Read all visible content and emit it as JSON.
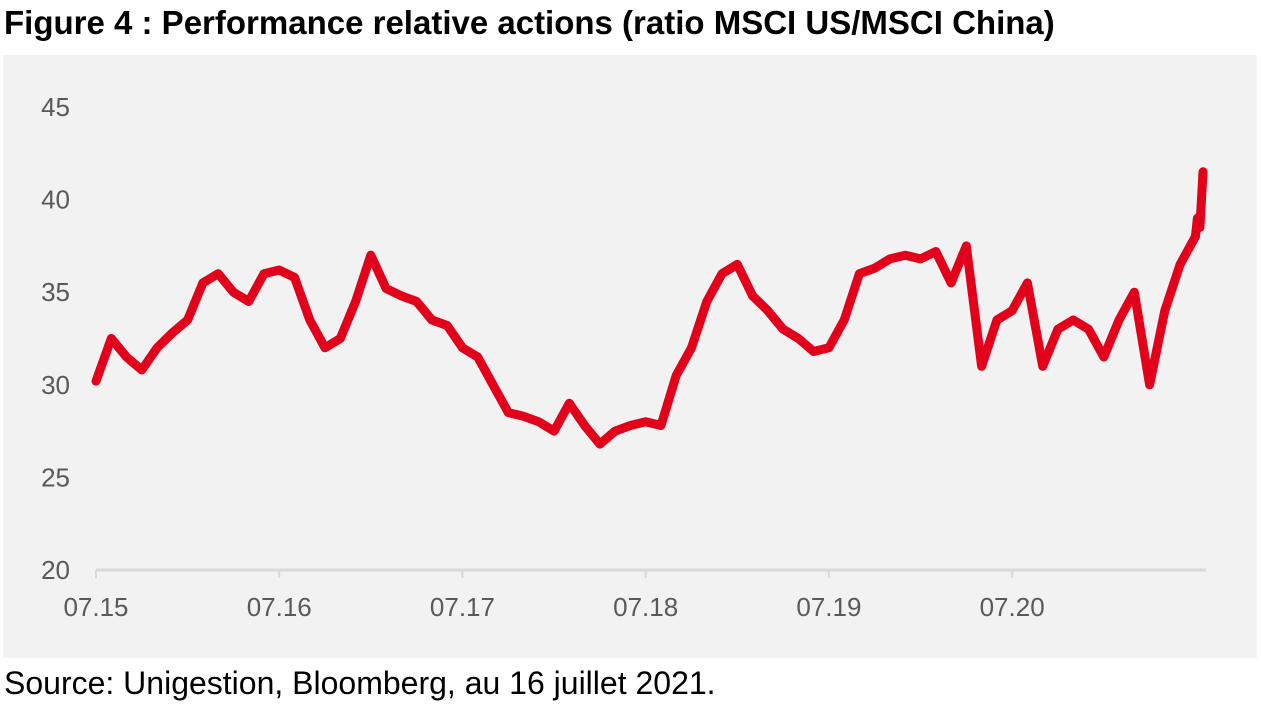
{
  "title": "Figure 4 : Performance relative actions (ratio MSCI US/MSCI China)",
  "source": "Source: Unigestion, Bloomberg, au 16 juillet 2021.",
  "chart_data": {
    "type": "line",
    "title": "Figure 4 : Performance relative actions (ratio MSCI US/MSCI China)",
    "xlabel": "",
    "ylabel": "",
    "ylim": [
      20,
      45
    ],
    "yticks": [
      20,
      25,
      30,
      35,
      40,
      45
    ],
    "xlim": [
      "2015-07",
      "2021-07"
    ],
    "xticks": [
      "07.15",
      "07.16",
      "07.17",
      "07.18",
      "07.19",
      "07.20"
    ],
    "grid": false,
    "legend": "none",
    "series": [
      {
        "color": "#e2001a",
        "x": [
          "2015-07",
          "2015-08",
          "2015-09",
          "2015-10",
          "2015-11",
          "2015-12",
          "2016-01",
          "2016-02",
          "2016-03",
          "2016-04",
          "2016-05",
          "2016-06",
          "2016-07",
          "2016-08",
          "2016-09",
          "2016-10",
          "2016-11",
          "2016-12",
          "2017-01",
          "2017-02",
          "2017-03",
          "2017-04",
          "2017-05",
          "2017-06",
          "2017-07",
          "2017-08",
          "2017-09",
          "2017-10",
          "2017-11",
          "2017-12",
          "2018-01",
          "2018-02",
          "2018-03",
          "2018-04",
          "2018-05",
          "2018-06",
          "2018-07",
          "2018-08",
          "2018-09",
          "2018-10",
          "2018-11",
          "2018-12",
          "2019-01",
          "2019-02",
          "2019-03",
          "2019-04",
          "2019-05",
          "2019-06",
          "2019-07",
          "2019-08",
          "2019-09",
          "2019-10",
          "2019-11",
          "2019-12",
          "2020-01",
          "2020-02",
          "2020-03",
          "2020-04",
          "2020-05",
          "2020-06",
          "2020-07",
          "2020-08",
          "2020-09",
          "2020-10",
          "2020-11",
          "2020-12",
          "2021-01",
          "2021-02",
          "2021-03",
          "2021-04",
          "2021-05",
          "2021-06",
          "2021-07"
        ],
        "y": [
          30.2,
          32.5,
          31.5,
          30.8,
          32.0,
          32.8,
          33.5,
          35.5,
          36.0,
          35.0,
          34.5,
          36.0,
          36.2,
          35.8,
          33.5,
          32.0,
          32.5,
          34.5,
          37.0,
          35.2,
          34.8,
          34.5,
          33.5,
          33.2,
          32.0,
          31.5,
          30.0,
          28.5,
          28.3,
          28.0,
          27.5,
          29.0,
          27.8,
          26.8,
          27.5,
          27.8,
          28.0,
          27.8,
          30.5,
          32.0,
          34.5,
          36.0,
          36.5,
          34.8,
          34.0,
          33.0,
          32.5,
          31.8,
          32.0,
          33.5,
          36.0,
          36.3,
          36.8,
          37.0,
          36.8,
          37.2,
          35.5,
          37.5,
          31.0,
          33.5,
          34.0,
          35.5,
          31.0,
          33.0,
          33.5,
          33.0,
          31.5,
          33.5,
          35.0,
          30.0,
          34.0,
          36.5,
          38.0
        ]
      },
      {
        "color": "#e2001a",
        "x": [
          "2021-07",
          "2021-07-05",
          "2021-07-10",
          "2021-07-16"
        ],
        "y": [
          38.0,
          39.0,
          38.5,
          41.5
        ]
      }
    ]
  }
}
